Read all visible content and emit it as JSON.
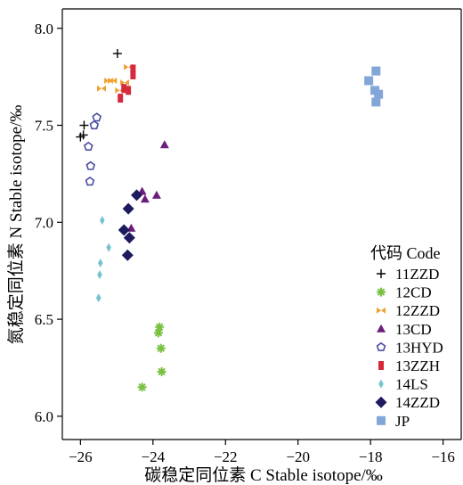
{
  "chart_data": {
    "type": "scatter",
    "xlabel": "碳稳定同位素 C Stable isotope/‰",
    "ylabel": "氮稳定同位素 N Stable isotope/‰",
    "xlim": [
      -26.5,
      -15.5
    ],
    "ylim": [
      5.88,
      8.1
    ],
    "xticks": [
      -26,
      -24,
      -22,
      -20,
      -18,
      -16
    ],
    "yticks": [
      6.0,
      6.5,
      7.0,
      7.5,
      8.0
    ],
    "x_tick_labels": [
      "−26",
      "−24",
      "−22",
      "−20",
      "−18",
      "−16"
    ],
    "y_tick_labels": [
      "6.0",
      "6.5",
      "7.0",
      "7.5",
      "8.0"
    ],
    "grid": false,
    "legend": {
      "title": "代码 Code",
      "placement": "bottom-right"
    },
    "series": [
      {
        "name": "11ZZD",
        "marker": "plus",
        "color": "#000000",
        "points": [
          [
            -24.98,
            7.87
          ],
          [
            -25.9,
            7.5
          ],
          [
            -26.0,
            7.44
          ],
          [
            -25.92,
            7.45
          ]
        ]
      },
      {
        "name": "12CD",
        "marker": "asterisk",
        "color": "#7ac143",
        "points": [
          [
            -23.82,
            6.46
          ],
          [
            -23.85,
            6.43
          ],
          [
            -23.78,
            6.35
          ],
          [
            -23.76,
            6.23
          ],
          [
            -24.3,
            6.15
          ]
        ]
      },
      {
        "name": "12ZZD",
        "marker": "bowtie",
        "color": "#f0a030",
        "points": [
          [
            -24.68,
            7.8
          ],
          [
            -25.22,
            7.73
          ],
          [
            -25.12,
            7.73
          ],
          [
            -24.78,
            7.72
          ],
          [
            -25.42,
            7.69
          ],
          [
            -24.92,
            7.68
          ]
        ]
      },
      {
        "name": "13CD",
        "marker": "triangle",
        "color": "#6a1f7a",
        "points": [
          [
            -23.68,
            7.4
          ],
          [
            -24.3,
            7.16
          ],
          [
            -23.9,
            7.14
          ],
          [
            -24.22,
            7.12
          ],
          [
            -24.6,
            6.97
          ]
        ]
      },
      {
        "name": "13HYD",
        "marker": "pentagon",
        "color": "#4a4ea0",
        "points": [
          [
            -25.55,
            7.54
          ],
          [
            -25.62,
            7.5
          ],
          [
            -25.78,
            7.39
          ],
          [
            -25.72,
            7.29
          ],
          [
            -25.74,
            7.21
          ]
        ]
      },
      {
        "name": "13ZZH",
        "marker": "rect",
        "color": "#d42a3c",
        "points": [
          [
            -24.55,
            7.79
          ],
          [
            -24.55,
            7.76
          ],
          [
            -24.8,
            7.69
          ],
          [
            -24.68,
            7.68
          ],
          [
            -24.9,
            7.64
          ]
        ]
      },
      {
        "name": "14LS",
        "marker": "thin-diamond",
        "color": "#74c2d0",
        "points": [
          [
            -25.4,
            7.01
          ],
          [
            -25.22,
            6.87
          ],
          [
            -25.45,
            6.79
          ],
          [
            -25.47,
            6.73
          ],
          [
            -25.5,
            6.61
          ]
        ]
      },
      {
        "name": "14ZZD",
        "marker": "diamond",
        "color": "#1b1b5e",
        "points": [
          [
            -24.45,
            7.14
          ],
          [
            -24.68,
            7.07
          ],
          [
            -24.8,
            6.96
          ],
          [
            -24.65,
            6.92
          ],
          [
            -24.7,
            6.83
          ]
        ]
      },
      {
        "name": "JP",
        "marker": "square",
        "color": "#82a6d8",
        "points": [
          [
            -17.85,
            7.78
          ],
          [
            -18.05,
            7.73
          ],
          [
            -17.88,
            7.68
          ],
          [
            -17.78,
            7.66
          ],
          [
            -17.85,
            7.62
          ]
        ]
      }
    ]
  }
}
